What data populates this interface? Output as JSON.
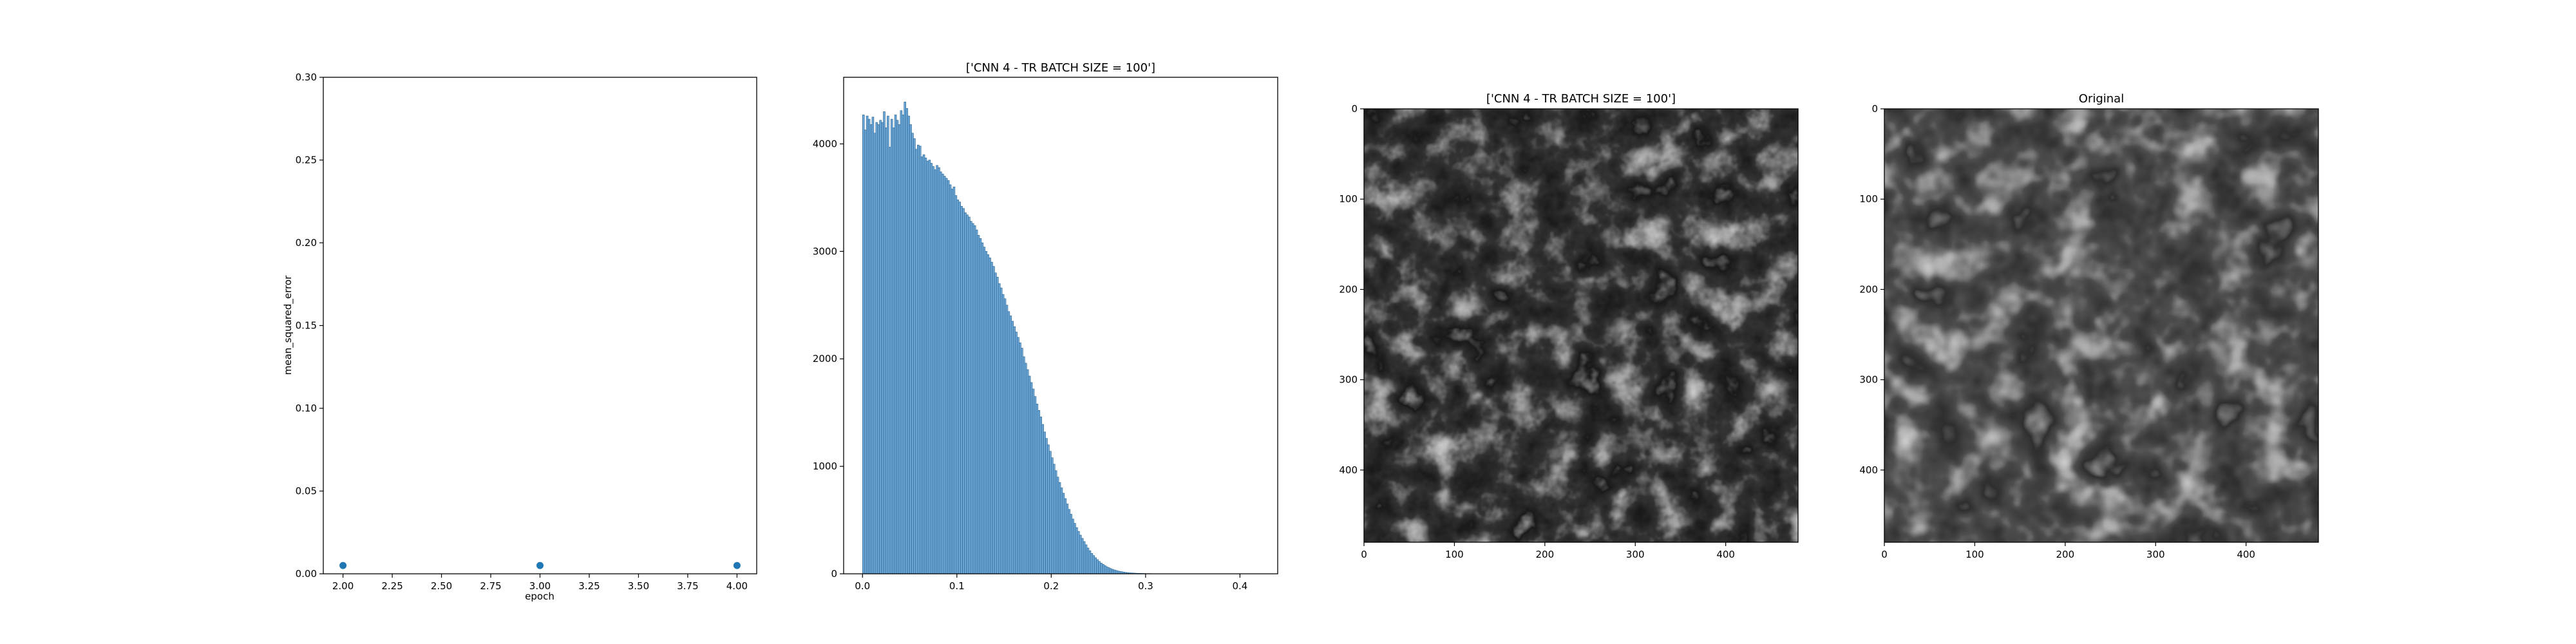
{
  "chart_data": [
    {
      "type": "scatter",
      "title": "",
      "xlabel": "epoch",
      "ylabel": "mean_squared_error",
      "xlim": [
        1.9,
        4.1
      ],
      "ylim": [
        0.0,
        0.3
      ],
      "xticks": [
        2.0,
        2.25,
        2.5,
        2.75,
        3.0,
        3.25,
        3.5,
        3.75,
        4.0
      ],
      "xtick_labels": [
        "2.00",
        "2.25",
        "2.50",
        "2.75",
        "3.00",
        "3.25",
        "3.50",
        "3.75",
        "4.00"
      ],
      "yticks": [
        0.0,
        0.05,
        0.1,
        0.15,
        0.2,
        0.25,
        0.3
      ],
      "ytick_labels": [
        "0.00",
        "0.05",
        "0.10",
        "0.15",
        "0.20",
        "0.25",
        "0.30"
      ],
      "x": [
        2.0,
        3.0,
        4.0
      ],
      "y": [
        0.005,
        0.005,
        0.005
      ],
      "color": "#1f77b4",
      "grid": false
    },
    {
      "type": "bar",
      "title": "['CNN 4 - TR BATCH SIZE = 100']",
      "xlabel": "",
      "ylabel": "",
      "xlim": [
        -0.02,
        0.44
      ],
      "ylim": [
        0,
        4620
      ],
      "xticks": [
        0.0,
        0.1,
        0.2,
        0.3,
        0.4
      ],
      "xtick_labels": [
        "0.0",
        "0.1",
        "0.2",
        "0.3",
        "0.4"
      ],
      "yticks": [
        0,
        1000,
        2000,
        3000,
        4000
      ],
      "ytick_labels": [
        "0",
        "1000",
        "2000",
        "3000",
        "4000"
      ],
      "bin_start": 0.0,
      "bin_width": 0.002,
      "values": [
        4270,
        4130,
        4260,
        4230,
        4180,
        4250,
        4100,
        4200,
        4180,
        4220,
        4200,
        4300,
        4150,
        4260,
        3970,
        4230,
        4150,
        4270,
        4220,
        4180,
        4310,
        4270,
        4390,
        4330,
        4260,
        4180,
        4100,
        4050,
        3950,
        3990,
        3980,
        3880,
        3900,
        3870,
        3840,
        3850,
        3820,
        3790,
        3760,
        3800,
        3780,
        3740,
        3720,
        3700,
        3680,
        3660,
        3620,
        3580,
        3600,
        3520,
        3480,
        3460,
        3420,
        3400,
        3360,
        3340,
        3320,
        3280,
        3260,
        3240,
        3200,
        3150,
        3120,
        3080,
        3040,
        3000,
        2970,
        2940,
        2900,
        2860,
        2800,
        2760,
        2700,
        2660,
        2600,
        2560,
        2500,
        2440,
        2400,
        2350,
        2300,
        2250,
        2200,
        2150,
        2100,
        2020,
        1960,
        1900,
        1840,
        1780,
        1720,
        1650,
        1580,
        1520,
        1460,
        1390,
        1320,
        1260,
        1200,
        1140,
        1080,
        1020,
        960,
        900,
        850,
        800,
        750,
        700,
        650,
        600,
        555,
        510,
        470,
        430,
        395,
        360,
        330,
        300,
        270,
        240,
        215,
        190,
        170,
        150,
        132,
        115,
        100,
        88,
        76,
        66,
        57,
        49,
        42,
        36,
        31,
        26,
        22,
        19,
        16,
        13,
        11,
        9,
        8,
        7,
        6,
        5,
        4,
        4,
        3,
        3,
        2,
        2,
        2,
        1,
        1,
        1
      ],
      "color": "#6fa8d6",
      "edge_color": "#1f5f8f"
    },
    {
      "type": "heatmap",
      "title": "['CNN 4 - TR BATCH SIZE = 100']",
      "xlim": [
        0,
        480
      ],
      "ylim": [
        480,
        0
      ],
      "xticks": [
        0,
        100,
        200,
        300,
        400
      ],
      "xtick_labels": [
        "0",
        "100",
        "200",
        "300",
        "400"
      ],
      "yticks": [
        0,
        100,
        200,
        300,
        400
      ],
      "ytick_labels": [
        "0",
        "100",
        "200",
        "300",
        "400"
      ],
      "colormap": "gray"
    },
    {
      "type": "heatmap",
      "title": "Original",
      "xlim": [
        0,
        480
      ],
      "ylim": [
        480,
        0
      ],
      "xticks": [
        0,
        100,
        200,
        300,
        400
      ],
      "xtick_labels": [
        "0",
        "100",
        "200",
        "300",
        "400"
      ],
      "yticks": [
        0,
        100,
        200,
        300,
        400
      ],
      "ytick_labels": [
        "0",
        "100",
        "200",
        "300",
        "400"
      ],
      "colormap": "gray"
    }
  ]
}
